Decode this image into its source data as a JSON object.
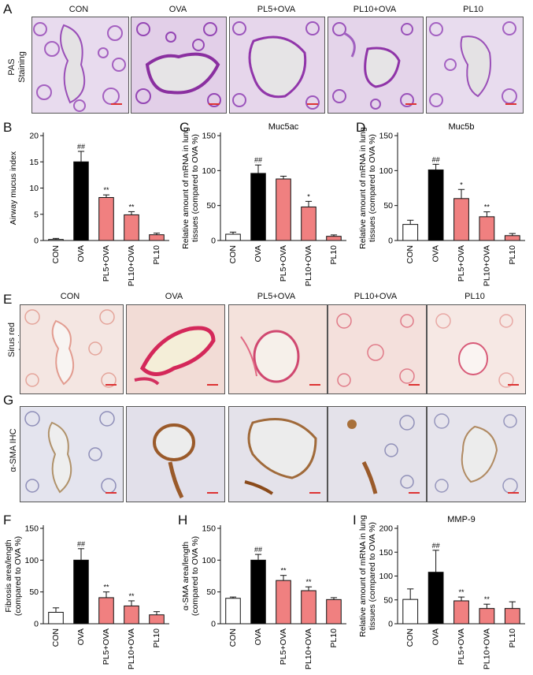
{
  "panel_letters": {
    "A": "A",
    "B": "B",
    "C": "C",
    "D": "D",
    "E": "E",
    "F": "F",
    "G": "G",
    "H": "H",
    "I": "I"
  },
  "groups": [
    "CON",
    "OVA",
    "PL5+OVA",
    "PL10+OVA",
    "PL10"
  ],
  "row_labels": {
    "pas": "PAS Staining",
    "sirius": "Sirus red staining",
    "sma": "α-SMA IHC staining"
  },
  "significance": {
    "hash": "##",
    "double_star": "**",
    "single_star": "*"
  },
  "colors": {
    "con": "#ffffff",
    "ova": "#000000",
    "pl": "#f08080",
    "pas": "#b878c8",
    "sirius": "#e4a8a0",
    "ihc": "#b0b0c8"
  },
  "chart_data": [
    {
      "id": "B",
      "type": "bar",
      "title": "",
      "ylabel": "Airway mucus index",
      "ylim": [
        0,
        20
      ],
      "yticks": [
        0,
        5,
        10,
        15,
        20
      ],
      "categories": [
        "CON",
        "OVA",
        "PL5+OVA",
        "PL10+OVA",
        "PL10"
      ],
      "values": [
        0.2,
        15.0,
        8.2,
        4.9,
        1.1
      ],
      "errors": [
        0.2,
        2.0,
        0.5,
        0.6,
        0.3
      ],
      "marks": [
        "",
        "##",
        "**",
        "**",
        ""
      ]
    },
    {
      "id": "C",
      "type": "bar",
      "title": "Muc5ac",
      "ylabel": "Relative amount of mRNA in lung tissues (compared to OVA %)",
      "ylim": [
        0,
        150
      ],
      "yticks": [
        0,
        50,
        100,
        150
      ],
      "categories": [
        "CON",
        "OVA",
        "PL5+OVA",
        "PL10+OVA",
        "PL10"
      ],
      "values": [
        9,
        96,
        88,
        48,
        6
      ],
      "errors": [
        3,
        12,
        4,
        8,
        2
      ],
      "marks": [
        "",
        "##",
        "",
        "*",
        ""
      ]
    },
    {
      "id": "D",
      "type": "bar",
      "title": "Muc5b",
      "ylabel": "Relative amount of mRNA in lung tissues (compared to OVA %)",
      "ylim": [
        0,
        150
      ],
      "yticks": [
        0,
        50,
        100,
        150
      ],
      "categories": [
        "CON",
        "OVA",
        "PL5+OVA",
        "PL10+OVA",
        "PL10"
      ],
      "values": [
        23,
        101,
        60,
        34,
        7
      ],
      "errors": [
        6,
        8,
        13,
        7,
        3
      ],
      "marks": [
        "",
        "##",
        "*",
        "**",
        ""
      ]
    },
    {
      "id": "F",
      "type": "bar",
      "title": "",
      "ylabel": "Fibrosis area/length (compared to OVA %)",
      "ylim": [
        0,
        150
      ],
      "yticks": [
        0,
        50,
        100,
        150
      ],
      "categories": [
        "CON",
        "OVA",
        "PL5+OVA",
        "PL10+OVA",
        "PL10"
      ],
      "values": [
        18,
        100,
        41,
        28,
        14
      ],
      "errors": [
        7,
        18,
        9,
        8,
        5
      ],
      "marks": [
        "",
        "##",
        "**",
        "**",
        ""
      ]
    },
    {
      "id": "H",
      "type": "bar",
      "title": "",
      "ylabel": "α-SMA area/length (compared to OVA %)",
      "ylim": [
        0,
        150
      ],
      "yticks": [
        0,
        50,
        100,
        150
      ],
      "categories": [
        "CON",
        "OVA",
        "PL5+OVA",
        "PL10+OVA",
        "PL10"
      ],
      "values": [
        40,
        100,
        68,
        52,
        38
      ],
      "errors": [
        2,
        9,
        8,
        6,
        3
      ],
      "marks": [
        "",
        "##",
        "**",
        "**",
        ""
      ]
    },
    {
      "id": "I",
      "type": "bar",
      "title": "MMP-9",
      "ylabel": "Relative amount of mRNA in lung tissues (compared to OVA %)",
      "ylim": [
        0,
        200
      ],
      "yticks": [
        0,
        50,
        100,
        150,
        200
      ],
      "categories": [
        "CON",
        "OVA",
        "PL5+OVA",
        "PL10+OVA",
        "PL10"
      ],
      "values": [
        51,
        108,
        48,
        32,
        32
      ],
      "errors": [
        22,
        46,
        8,
        9,
        14
      ],
      "marks": [
        "",
        "##",
        "**",
        "**",
        ""
      ]
    }
  ]
}
